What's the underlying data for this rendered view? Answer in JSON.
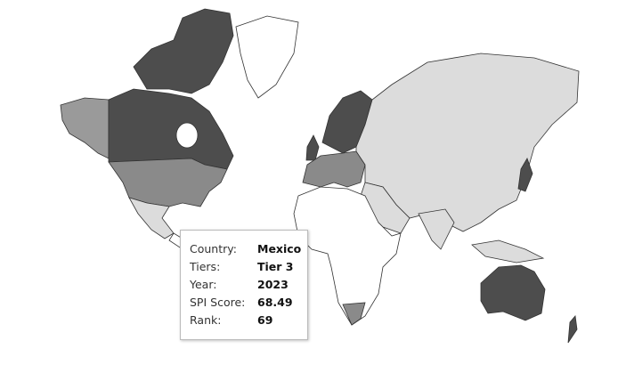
{
  "map": {
    "colors": {
      "tier1": "#4d4d4d",
      "tier2": "#8a8a8a",
      "tier3": "#dcdcdc",
      "none": "#ffffff",
      "border": "#333333"
    }
  },
  "tooltip": {
    "rows": [
      {
        "label": "Country:",
        "value": "Mexico"
      },
      {
        "label": "Tiers:",
        "value": "Tier 3"
      },
      {
        "label": "Year:",
        "value": "2023"
      },
      {
        "label": "SPI Score:",
        "value": "68.49"
      },
      {
        "label": "Rank:",
        "value": "69"
      }
    ]
  }
}
